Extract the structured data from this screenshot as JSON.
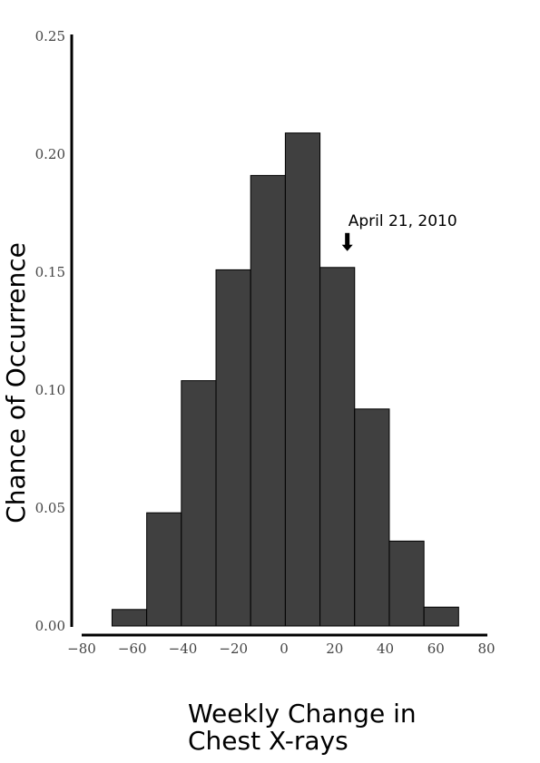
{
  "chart_data": {
    "type": "bar",
    "bin_edges": [
      -68,
      -54.3,
      -40.6,
      -26.9,
      -13.2,
      0.5,
      14.2,
      27.9,
      41.6,
      55.3,
      69
    ],
    "values": [
      0.007,
      0.048,
      0.104,
      0.151,
      0.191,
      0.209,
      0.152,
      0.092,
      0.036,
      0.008
    ],
    "xlabel_line1": "Weekly Change in",
    "xlabel_line2": "Chest X-rays",
    "ylabel": "Chance of Occurrence",
    "xlim": [
      -80,
      80
    ],
    "ylim": [
      0,
      0.25
    ],
    "x_ticks": [
      -80,
      -60,
      -40,
      -20,
      0,
      20,
      40,
      60,
      80
    ],
    "x_tick_labels": [
      "−80",
      "−60",
      "−40",
      "−20",
      "0",
      "20",
      "40",
      "60",
      "80"
    ],
    "y_ticks": [
      0,
      0.05,
      0.1,
      0.15,
      0.2,
      0.25
    ],
    "y_tick_labels": [
      "0.00",
      "0.05",
      "0.10",
      "0.15",
      "0.20",
      "0.25"
    ],
    "grid": false,
    "bar_color": "#404040",
    "bar_edge_color": "#000000",
    "annotation": {
      "text": "April 21, 2010",
      "x": 25,
      "y": 0.152
    }
  }
}
